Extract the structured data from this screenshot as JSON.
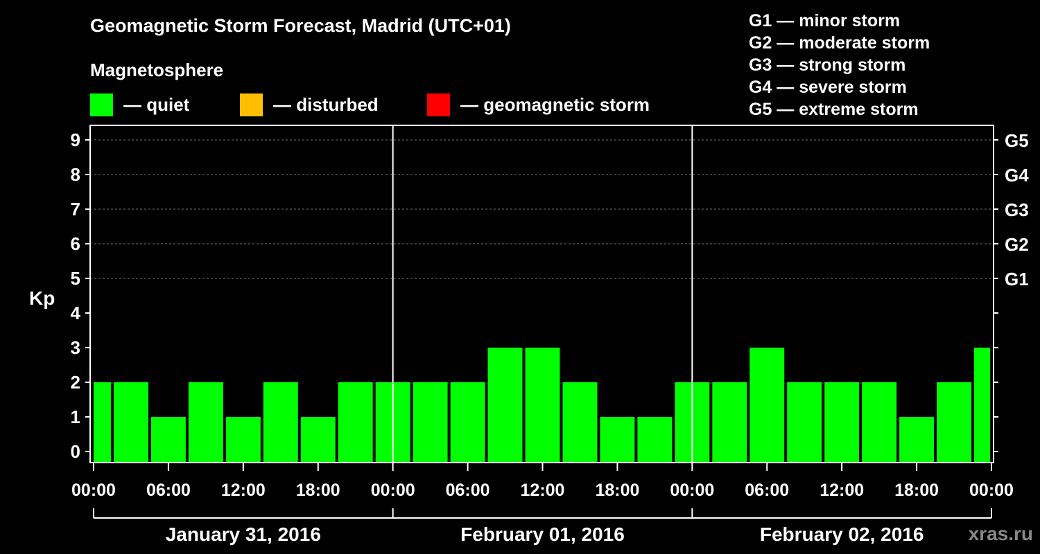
{
  "title": "Geomagnetic Storm Forecast, Madrid (UTC+01)",
  "subtitle": "Magnetosphere",
  "legend": [
    {
      "label": "— quiet",
      "color": "#00ff00"
    },
    {
      "label": "— disturbed",
      "color": "#ffbf00"
    },
    {
      "label": "— geomagnetic storm",
      "color": "#ff0000"
    }
  ],
  "storm_levels": [
    "G1 — minor storm",
    "G2 — moderate storm",
    "G3 — strong storm",
    "G4 — severe storm",
    "G5 — extreme storm"
  ],
  "brand": "xras.ru",
  "chart_data": {
    "type": "bar",
    "title": "Geomagnetic Storm Forecast, Madrid (UTC+01)",
    "ylabel": "Kp",
    "ylim": [
      0,
      9
    ],
    "y_ticks": [
      "0",
      "1",
      "2",
      "3",
      "4",
      "5",
      "6",
      "7",
      "8",
      "9"
    ],
    "right_axis_labels": [
      {
        "kp": 5,
        "label": "G1"
      },
      {
        "kp": 6,
        "label": "G2"
      },
      {
        "kp": 7,
        "label": "G3"
      },
      {
        "kp": 8,
        "label": "G4"
      },
      {
        "kp": 9,
        "label": "G5"
      }
    ],
    "x_tick_labels": [
      "00:00",
      "06:00",
      "12:00",
      "18:00",
      "00:00",
      "06:00",
      "12:00",
      "18:00",
      "00:00",
      "06:00",
      "12:00",
      "18:00",
      "00:00"
    ],
    "days": [
      "January 31, 2016",
      "February 01, 2016",
      "February 02, 2016"
    ],
    "grid": "dashed horizontal at Kp 5-9",
    "bar_interval_hours": 3,
    "values": [
      2,
      2,
      1,
      2,
      1,
      2,
      1,
      2,
      2,
      2,
      2,
      3,
      3,
      2,
      1,
      1,
      2,
      2,
      3,
      2,
      2,
      2,
      1,
      2,
      3
    ],
    "bar_color": "#00ff00"
  }
}
